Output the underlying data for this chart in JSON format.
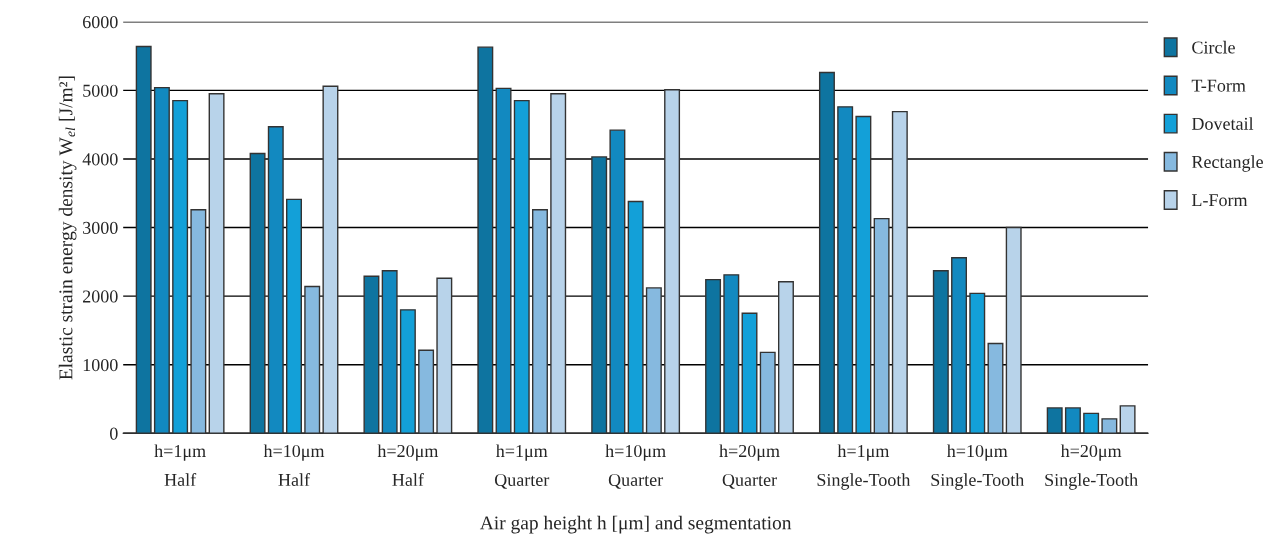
{
  "chart_data": {
    "type": "bar",
    "xlabel": "Air gap height h [μm] and segmentation",
    "ylabel": "Elastic strain energy density W$_{el}$ [J/m²]",
    "categories": [
      "h=1μm\nHalf",
      "h=10μm\nHalf",
      "h=20μm\nHalf",
      "h=1μm\nQuarter",
      "h=10μm\nQuarter",
      "h=20μm\nQuarter",
      "h=1μm\nSingle-Tooth",
      "h=10μm\nSingle-Tooth",
      "h=20μm\nSingle-Tooth"
    ],
    "series": [
      {
        "name": "Circle",
        "color": "#0e74a0",
        "values": [
          5640,
          4080,
          2290,
          5630,
          4030,
          2240,
          5260,
          2370,
          370
        ]
      },
      {
        "name": "T-Form",
        "color": "#1289c0",
        "values": [
          5040,
          4470,
          2370,
          5030,
          4420,
          2310,
          4760,
          2560,
          370
        ]
      },
      {
        "name": "Dovetail",
        "color": "#13a0d8",
        "values": [
          4850,
          3410,
          1800,
          4850,
          3380,
          1750,
          4620,
          2040,
          290
        ]
      },
      {
        "name": "Rectangle",
        "color": "#86b9df",
        "values": [
          3260,
          2140,
          1210,
          3260,
          2120,
          1180,
          3130,
          1310,
          210
        ]
      },
      {
        "name": "L-Form",
        "color": "#b8d3ea",
        "values": [
          4950,
          5060,
          2260,
          4950,
          5010,
          2210,
          4690,
          3000,
          400
        ]
      }
    ],
    "ylim": [
      0,
      6000
    ],
    "yticks": [
      0,
      1000,
      2000,
      3000,
      4000,
      5000,
      6000
    ],
    "grid": "y",
    "legend": "right"
  }
}
